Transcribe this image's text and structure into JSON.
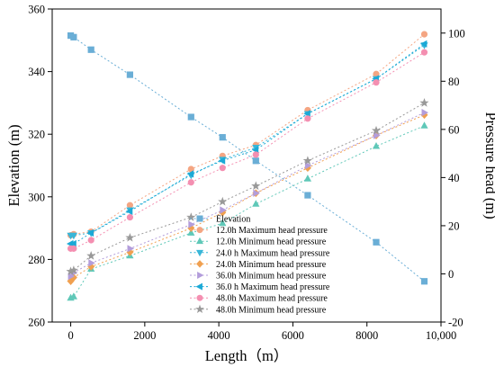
{
  "chart_data": {
    "type": "scatter",
    "title": "",
    "xlabel": "Length（m）",
    "ylabel_left": "Elevation (m)",
    "ylabel_right": "Pressure head (m)",
    "xlim": [
      -500,
      10000
    ],
    "ylim_left": [
      260,
      360
    ],
    "ylim_right": [
      -20,
      110
    ],
    "x_ticks": [
      0,
      2000,
      4000,
      6000,
      8000,
      10000
    ],
    "x_tick_labels": [
      "0",
      "2000",
      "4000",
      "6000",
      "8000",
      "10,000"
    ],
    "y_left_ticks": [
      260,
      280,
      300,
      320,
      340,
      360
    ],
    "y_right_ticks": [
      -20,
      0,
      20,
      40,
      60,
      80,
      100
    ],
    "grid": false,
    "legend_position": "bottom-center",
    "series": [
      {
        "name": "Elevation",
        "axis": "left",
        "marker": "square",
        "color": "#6aaed6",
        "x": [
          0,
          80,
          550,
          1600,
          3250,
          4100,
          5000,
          6400,
          8250,
          9550
        ],
        "y": [
          351.5,
          351,
          347,
          339,
          325.5,
          319,
          311.5,
          300.5,
          285.5,
          273
        ]
      },
      {
        "name": "12.0h Maximum head pressure",
        "axis": "right",
        "marker": "circle",
        "color": "#f4a582",
        "x": [
          0,
          80,
          550,
          1600,
          3250,
          4100,
          5000,
          6400,
          8250,
          9550
        ],
        "y": [
          16,
          16.5,
          17.5,
          28.5,
          43.5,
          49,
          53.5,
          68,
          83,
          99.5
        ]
      },
      {
        "name": "12.0h Minimum head pressure",
        "axis": "right",
        "marker": "triangle-up",
        "color": "#5fc8b8",
        "x": [
          0,
          80,
          550,
          1600,
          3250,
          4100,
          5000,
          6400,
          8250,
          9550
        ],
        "y": [
          -10,
          -9.5,
          2,
          7.5,
          17,
          21,
          29,
          39.5,
          53,
          61.5
        ]
      },
      {
        "name": "24.0 h Maximum head pressure",
        "axis": "right",
        "marker": "triangle-down",
        "color": "#38b6d8",
        "x": [
          0,
          80,
          550,
          1600,
          3250,
          4100,
          5000,
          6400,
          8250,
          9550
        ],
        "y": [
          16,
          16,
          17,
          26.5,
          41,
          47.5,
          52.5,
          66.5,
          81,
          95
        ]
      },
      {
        "name": "24.0h Minimum head pressure",
        "axis": "right",
        "marker": "diamond",
        "color": "#f0a050",
        "x": [
          0,
          80,
          550,
          1600,
          3250,
          4100,
          5000,
          6400,
          8250,
          9550
        ],
        "y": [
          -3,
          -1.5,
          3,
          9,
          19,
          25.5,
          33.5,
          44,
          57.5,
          66
        ]
      },
      {
        "name": "36.0h Minimum head pressure",
        "axis": "right",
        "marker": "triangle-right",
        "color": "#b39ddb",
        "x": [
          0,
          80,
          550,
          1600,
          3250,
          4100,
          5000,
          6400,
          8250,
          9550
        ],
        "y": [
          -1,
          0.5,
          4.5,
          10.5,
          20.5,
          26.5,
          33.5,
          45,
          57.5,
          67
        ]
      },
      {
        "name": "36.0 h Maximum head pressure",
        "axis": "right",
        "marker": "triangle-left",
        "color": "#1ba9d6",
        "x": [
          0,
          80,
          550,
          1600,
          3250,
          4100,
          5000,
          6400,
          8250,
          9550
        ],
        "y": [
          12.5,
          12.5,
          17,
          26,
          41.5,
          47,
          51.5,
          66.5,
          81,
          95.5
        ]
      },
      {
        "name": "48.0h Maximum head pressure",
        "axis": "right",
        "marker": "circle",
        "color": "#f48fb1",
        "x": [
          0,
          80,
          550,
          1600,
          3250,
          4100,
          5000,
          6400,
          8250,
          9550
        ],
        "y": [
          10.5,
          10.5,
          14,
          23.5,
          38,
          44,
          49.5,
          64.5,
          79.5,
          92
        ]
      },
      {
        "name": "48.0h Minimum head pressure",
        "axis": "right",
        "marker": "star",
        "color": "#999999",
        "x": [
          0,
          80,
          550,
          1600,
          3250,
          4100,
          5000,
          6400,
          8250,
          9550
        ],
        "y": [
          1,
          1.5,
          7.5,
          15,
          23.5,
          30,
          36.5,
          47,
          59.5,
          71
        ]
      }
    ]
  }
}
